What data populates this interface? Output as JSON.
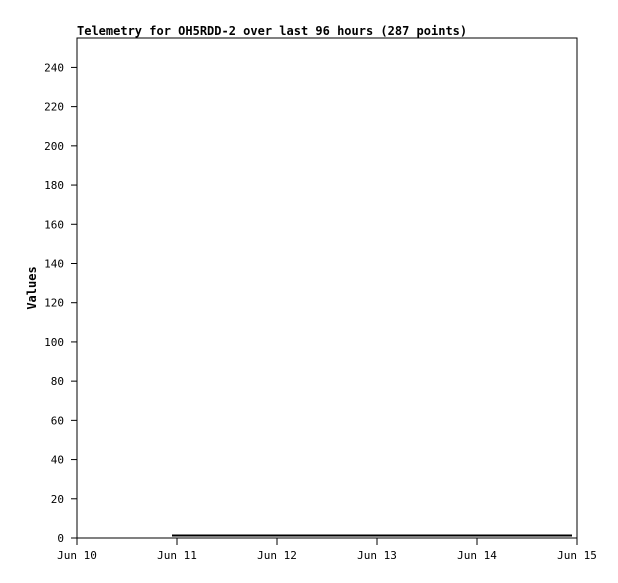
{
  "chart_data": {
    "type": "line",
    "title": "Telemetry for OH5RDD-2 over last 96 hours (287 points)",
    "xlabel": "",
    "ylabel": "Values",
    "ylim": [
      0,
      255
    ],
    "yticks": [
      0,
      20,
      40,
      60,
      80,
      100,
      120,
      140,
      160,
      180,
      200,
      220,
      240
    ],
    "xlim": [
      "Jun 10",
      "Jun 15"
    ],
    "xticks": [
      "Jun 10",
      "Jun 11",
      "Jun 12",
      "Jun 13",
      "Jun 14",
      "Jun 15"
    ],
    "grid": false,
    "series": [
      {
        "x_days": [
          0.95,
          4.95
        ],
        "y": [
          1,
          1
        ],
        "color": "#000000"
      }
    ]
  }
}
